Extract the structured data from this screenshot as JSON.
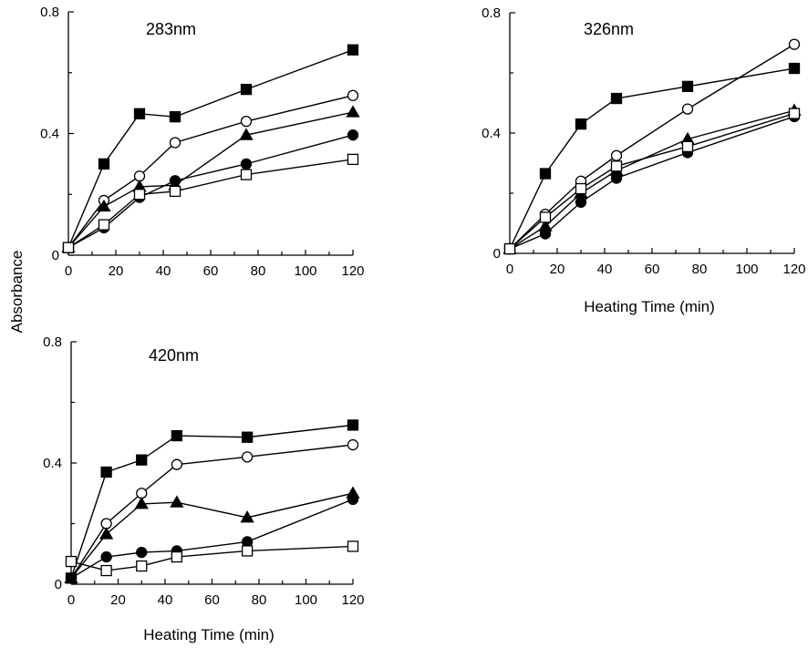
{
  "figure": {
    "ylabel": "Absorbance",
    "xlabel": "Heating Time (min)"
  },
  "chart_data": [
    {
      "type": "line",
      "title": "283nm",
      "xlabel": "",
      "ylabel": "Absorbance",
      "xlim": [
        0,
        120
      ],
      "ylim": [
        0,
        0.8
      ],
      "xticks": [
        "0",
        "20",
        "40",
        "60",
        "80",
        "100",
        "120"
      ],
      "yticks": [
        "0",
        "0.4",
        "0.8"
      ],
      "grid": false,
      "x": [
        0,
        15,
        30,
        45,
        75,
        120
      ],
      "series": [
        {
          "marker": "filled-square",
          "values": [
            0.025,
            0.3,
            0.465,
            0.455,
            0.545,
            0.675
          ]
        },
        {
          "marker": "open-circle",
          "values": [
            0.025,
            0.18,
            0.26,
            0.37,
            0.44,
            0.525
          ]
        },
        {
          "marker": "filled-triangle",
          "values": [
            0.025,
            0.16,
            0.225,
            0.23,
            0.395,
            0.47
          ]
        },
        {
          "marker": "filled-circle",
          "values": [
            0.025,
            0.09,
            0.19,
            0.245,
            0.3,
            0.395
          ]
        },
        {
          "marker": "open-square",
          "values": [
            0.025,
            0.1,
            0.2,
            0.21,
            0.265,
            0.315
          ]
        }
      ]
    },
    {
      "type": "line",
      "title": "326nm",
      "xlabel": "Heating Time (min)",
      "ylabel": "",
      "xlim": [
        0,
        120
      ],
      "ylim": [
        0,
        0.8
      ],
      "xticks": [
        "0",
        "20",
        "40",
        "60",
        "80",
        "100",
        "120"
      ],
      "yticks": [
        "0",
        "0.4",
        "0.8"
      ],
      "grid": false,
      "x": [
        0,
        15,
        30,
        45,
        75,
        120
      ],
      "series": [
        {
          "marker": "filled-square",
          "values": [
            0.015,
            0.265,
            0.43,
            0.515,
            0.555,
            0.615
          ]
        },
        {
          "marker": "open-circle",
          "values": [
            0.015,
            0.13,
            0.24,
            0.325,
            0.48,
            0.695
          ]
        },
        {
          "marker": "filled-triangle",
          "values": [
            0.015,
            0.09,
            0.2,
            0.275,
            0.38,
            0.475
          ]
        },
        {
          "marker": "filled-circle",
          "values": [
            0.015,
            0.065,
            0.17,
            0.25,
            0.335,
            0.455
          ]
        },
        {
          "marker": "open-square",
          "values": [
            0.015,
            0.12,
            0.215,
            0.29,
            0.355,
            0.465
          ]
        }
      ]
    },
    {
      "type": "line",
      "title": "420nm",
      "xlabel": "Heating Time (min)",
      "ylabel": "Absorbance",
      "xlim": [
        0,
        120
      ],
      "ylim": [
        0,
        0.8
      ],
      "xticks": [
        "0",
        "20",
        "40",
        "60",
        "80",
        "100",
        "120"
      ],
      "yticks": [
        "0",
        "0.4",
        "0.8"
      ],
      "grid": false,
      "x": [
        0,
        15,
        30,
        45,
        75,
        120
      ],
      "series": [
        {
          "marker": "filled-square",
          "values": [
            0.02,
            0.37,
            0.41,
            0.49,
            0.485,
            0.525
          ]
        },
        {
          "marker": "open-circle",
          "values": [
            0.02,
            0.2,
            0.3,
            0.395,
            0.42,
            0.46
          ]
        },
        {
          "marker": "filled-triangle",
          "values": [
            0.02,
            0.165,
            0.265,
            0.27,
            0.22,
            0.3
          ]
        },
        {
          "marker": "filled-circle",
          "values": [
            0.02,
            0.09,
            0.105,
            0.11,
            0.14,
            0.28
          ]
        },
        {
          "marker": "open-square",
          "values": [
            0.075,
            0.045,
            0.06,
            0.09,
            0.11,
            0.125
          ]
        }
      ]
    }
  ]
}
